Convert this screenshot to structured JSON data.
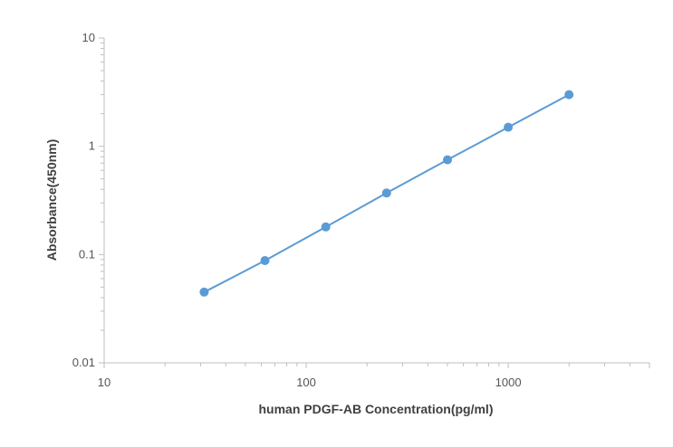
{
  "chart_data": {
    "type": "scatter",
    "title": "",
    "xlabel": "human PDGF-AB  Concentration(pg/ml)",
    "ylabel": "Absorbance(450nm)",
    "x_scale": "log",
    "y_scale": "log",
    "xlim": [
      10,
      5000
    ],
    "ylim": [
      0.01,
      10
    ],
    "x_ticks": [
      10,
      100,
      1000
    ],
    "x_tick_labels": [
      "10",
      "100",
      "1000"
    ],
    "y_ticks": [
      0.01,
      0.1,
      1,
      10
    ],
    "y_tick_labels": [
      "0.01",
      "0.1",
      "1",
      "10"
    ],
    "grid": false,
    "legend": "none",
    "series": [
      {
        "x": [
          31.25,
          62.5,
          125,
          250,
          500,
          1000,
          2000
        ],
        "y": [
          0.045,
          0.088,
          0.18,
          0.37,
          0.75,
          1.5,
          3.0
        ],
        "color": "#5b9bd5",
        "marker": "circle",
        "connect": true
      }
    ]
  }
}
